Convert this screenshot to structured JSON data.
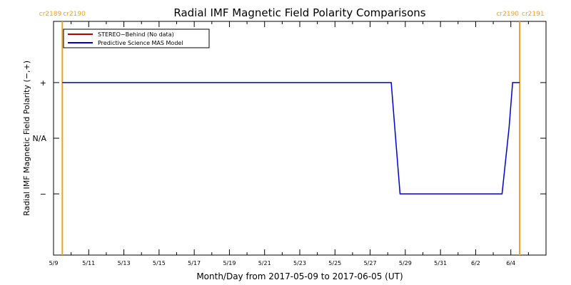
{
  "chart_data": {
    "type": "line",
    "title": "Radial IMF Magnetic Field Polarity Comparisons",
    "xlabel": "Month/Day from 2017-05-09 to 2017-06-05 (UT)",
    "ylabel": "Radial IMF Magnetic Field Polarity (−,+)",
    "x_ticks": [
      "5/9",
      "5/11",
      "5/13",
      "5/15",
      "5/17",
      "5/19",
      "5/21",
      "5/23",
      "5/25",
      "5/27",
      "5/29",
      "5/31",
      "6/2",
      "6/4"
    ],
    "y_ticks": [
      {
        "label": "+",
        "value": 1
      },
      {
        "label": "N/A",
        "value": 0
      },
      {
        "label": "−",
        "value": -1
      }
    ],
    "xlim_days": [
      0,
      28
    ],
    "ylim": [
      -2.1,
      2.1
    ],
    "grid": false,
    "legend": {
      "placement": "top-left",
      "entries": [
        {
          "label": "STEREO−Behind (No data)",
          "color": "#b00000"
        },
        {
          "label": "Predictive Science MAS Model",
          "color": "#0000cc"
        }
      ]
    },
    "series": [
      {
        "name": "Predictive Science MAS Model",
        "color": "#0000cc",
        "x_days": [
          0.5,
          19.2,
          19.5,
          19.7,
          25.5,
          25.9,
          26.1,
          26.5
        ],
        "y": [
          1,
          1,
          -0.2,
          -1,
          -1,
          0.2,
          1,
          1
        ]
      }
    ],
    "carrington_markers": [
      {
        "labels": [
          "cr2189",
          "cr2190"
        ],
        "x_days": 0.5,
        "side": "left",
        "color": "#f0a020"
      },
      {
        "labels": [
          "cr2190",
          "cr2191"
        ],
        "x_days": 26.5,
        "side": "right",
        "color": "#f0a020"
      }
    ]
  }
}
